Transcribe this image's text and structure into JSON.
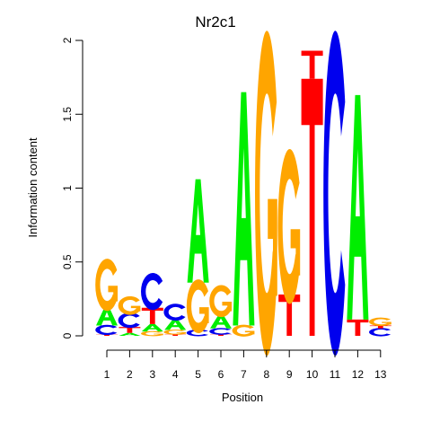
{
  "chart_data": {
    "type": "sequence-logo",
    "title": "Nr2c1",
    "xlabel": "Position",
    "ylabel": "Information content",
    "ylim": [
      0,
      2
    ],
    "yticks": [
      0,
      0.5,
      1,
      1.5,
      2
    ],
    "xticks": [
      "1",
      "2",
      "3",
      "4",
      "5",
      "6",
      "7",
      "8",
      "9",
      "10",
      "11",
      "12",
      "13"
    ],
    "colors": {
      "A": "#00ee00",
      "C": "#0000ee",
      "G": "#ffa500",
      "T": "#ff0000"
    },
    "positions": [
      [
        [
          "T",
          0.01
        ],
        [
          "C",
          0.06
        ],
        [
          "A",
          0.12
        ],
        [
          "G",
          0.31
        ]
      ],
      [
        [
          "A",
          0.02
        ],
        [
          "T",
          0.04
        ],
        [
          "C",
          0.09
        ],
        [
          "G",
          0.11
        ]
      ],
      [
        [
          "G",
          0.03
        ],
        [
          "A",
          0.05
        ],
        [
          "T",
          0.11
        ],
        [
          "C",
          0.22
        ]
      ],
      [
        [
          "T",
          0.01
        ],
        [
          "G",
          0.03
        ],
        [
          "A",
          0.07
        ],
        [
          "C",
          0.1
        ]
      ],
      [
        [
          "C",
          0.04
        ],
        [
          "G",
          0.32
        ],
        [
          "A",
          0.7
        ]
      ],
      [
        [
          "T",
          0.01
        ],
        [
          "C",
          0.04
        ],
        [
          "A",
          0.09
        ],
        [
          "G",
          0.19
        ]
      ],
      [
        [
          "G",
          0.07
        ],
        [
          "A",
          1.58
        ]
      ],
      [
        [
          "G",
          1.93
        ]
      ],
      [
        [
          "T",
          0.28
        ],
        [
          "G",
          0.92
        ]
      ],
      [
        [
          "T",
          1.74
        ],
        [
          "T",
          0.19
        ]
      ],
      [
        [
          "C",
          1.93
        ]
      ],
      [
        [
          "T",
          0.11
        ],
        [
          "A",
          1.52
        ]
      ],
      [
        [
          "C",
          0.05
        ],
        [
          "T",
          0.02
        ],
        [
          "G",
          0.05
        ]
      ]
    ]
  }
}
